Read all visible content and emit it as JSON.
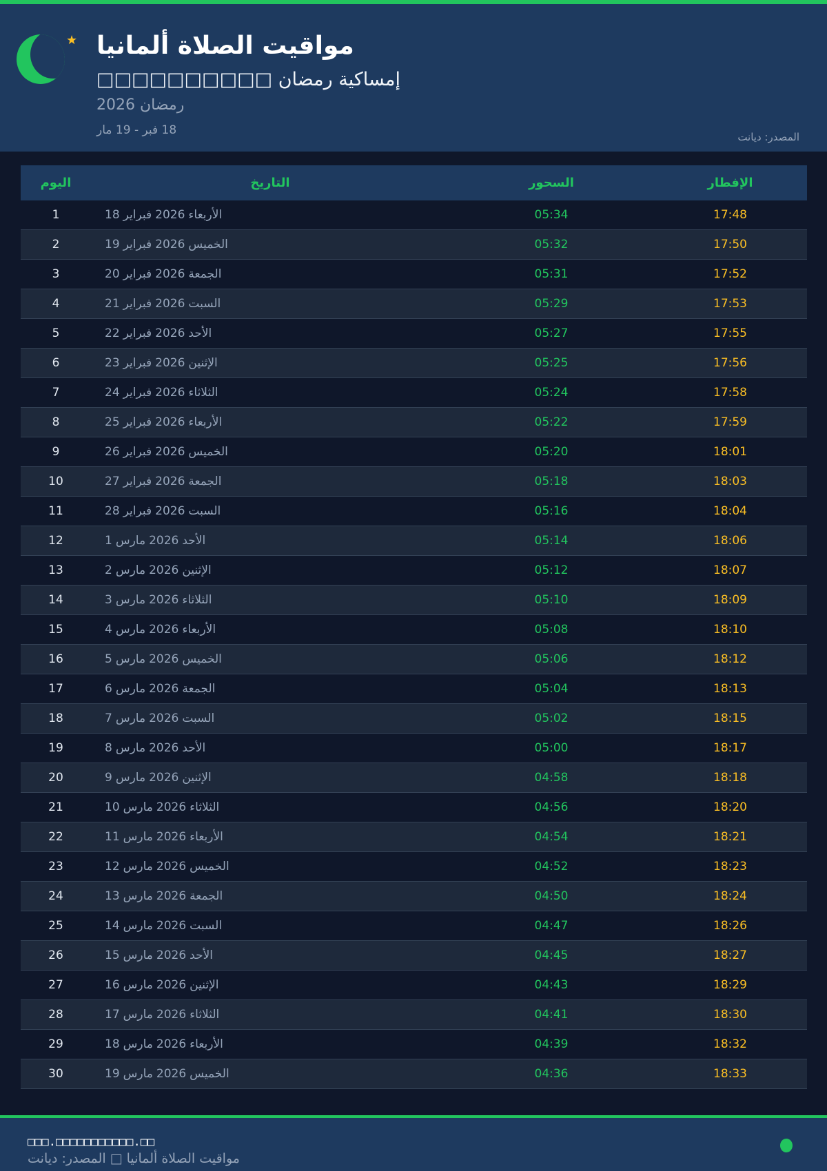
{
  "header": {
    "title": "مواقيت الصلاة ألمانيا",
    "subtitle": "□□□□□□□□□□ إمساكية رمضان",
    "season": "رمضان 2026",
    "range": "18 فبر - 19 مار",
    "source": "المصدر: ديانت"
  },
  "colors": {
    "accent": "#22c55e",
    "iftar": "#fbbf24",
    "header_bg": "#1e3a5f",
    "page_bg": "#0f172a"
  },
  "table": {
    "columns": {
      "day": "اليوم",
      "date": "التاريخ",
      "sahur": "السحور",
      "iftar": "الإفطار"
    },
    "rows": [
      {
        "day": "1",
        "d": "18",
        "m": "فبراير",
        "y": "2026",
        "wd": "الأربعاء",
        "sahur": "05:34",
        "iftar": "17:48"
      },
      {
        "day": "2",
        "d": "19",
        "m": "فبراير",
        "y": "2026",
        "wd": "الخميس",
        "sahur": "05:32",
        "iftar": "17:50"
      },
      {
        "day": "3",
        "d": "20",
        "m": "فبراير",
        "y": "2026",
        "wd": "الجمعة",
        "sahur": "05:31",
        "iftar": "17:52"
      },
      {
        "day": "4",
        "d": "21",
        "m": "فبراير",
        "y": "2026",
        "wd": "السبت",
        "sahur": "05:29",
        "iftar": "17:53"
      },
      {
        "day": "5",
        "d": "22",
        "m": "فبراير",
        "y": "2026",
        "wd": "الأحد",
        "sahur": "05:27",
        "iftar": "17:55"
      },
      {
        "day": "6",
        "d": "23",
        "m": "فبراير",
        "y": "2026",
        "wd": "الإثنين",
        "sahur": "05:25",
        "iftar": "17:56"
      },
      {
        "day": "7",
        "d": "24",
        "m": "فبراير",
        "y": "2026",
        "wd": "الثلاثاء",
        "sahur": "05:24",
        "iftar": "17:58"
      },
      {
        "day": "8",
        "d": "25",
        "m": "فبراير",
        "y": "2026",
        "wd": "الأربعاء",
        "sahur": "05:22",
        "iftar": "17:59"
      },
      {
        "day": "9",
        "d": "26",
        "m": "فبراير",
        "y": "2026",
        "wd": "الخميس",
        "sahur": "05:20",
        "iftar": "18:01"
      },
      {
        "day": "10",
        "d": "27",
        "m": "فبراير",
        "y": "2026",
        "wd": "الجمعة",
        "sahur": "05:18",
        "iftar": "18:03"
      },
      {
        "day": "11",
        "d": "28",
        "m": "فبراير",
        "y": "2026",
        "wd": "السبت",
        "sahur": "05:16",
        "iftar": "18:04"
      },
      {
        "day": "12",
        "d": "1",
        "m": "مارس",
        "y": "2026",
        "wd": "الأحد",
        "sahur": "05:14",
        "iftar": "18:06"
      },
      {
        "day": "13",
        "d": "2",
        "m": "مارس",
        "y": "2026",
        "wd": "الإثنين",
        "sahur": "05:12",
        "iftar": "18:07"
      },
      {
        "day": "14",
        "d": "3",
        "m": "مارس",
        "y": "2026",
        "wd": "الثلاثاء",
        "sahur": "05:10",
        "iftar": "18:09"
      },
      {
        "day": "15",
        "d": "4",
        "m": "مارس",
        "y": "2026",
        "wd": "الأربعاء",
        "sahur": "05:08",
        "iftar": "18:10"
      },
      {
        "day": "16",
        "d": "5",
        "m": "مارس",
        "y": "2026",
        "wd": "الخميس",
        "sahur": "05:06",
        "iftar": "18:12"
      },
      {
        "day": "17",
        "d": "6",
        "m": "مارس",
        "y": "2026",
        "wd": "الجمعة",
        "sahur": "05:04",
        "iftar": "18:13"
      },
      {
        "day": "18",
        "d": "7",
        "m": "مارس",
        "y": "2026",
        "wd": "السبت",
        "sahur": "05:02",
        "iftar": "18:15"
      },
      {
        "day": "19",
        "d": "8",
        "m": "مارس",
        "y": "2026",
        "wd": "الأحد",
        "sahur": "05:00",
        "iftar": "18:17"
      },
      {
        "day": "20",
        "d": "9",
        "m": "مارس",
        "y": "2026",
        "wd": "الإثنين",
        "sahur": "04:58",
        "iftar": "18:18"
      },
      {
        "day": "21",
        "d": "10",
        "m": "مارس",
        "y": "2026",
        "wd": "الثلاثاء",
        "sahur": "04:56",
        "iftar": "18:20"
      },
      {
        "day": "22",
        "d": "11",
        "m": "مارس",
        "y": "2026",
        "wd": "الأربعاء",
        "sahur": "04:54",
        "iftar": "18:21"
      },
      {
        "day": "23",
        "d": "12",
        "m": "مارس",
        "y": "2026",
        "wd": "الخميس",
        "sahur": "04:52",
        "iftar": "18:23"
      },
      {
        "day": "24",
        "d": "13",
        "m": "مارس",
        "y": "2026",
        "wd": "الجمعة",
        "sahur": "04:50",
        "iftar": "18:24"
      },
      {
        "day": "25",
        "d": "14",
        "m": "مارس",
        "y": "2026",
        "wd": "السبت",
        "sahur": "04:47",
        "iftar": "18:26"
      },
      {
        "day": "26",
        "d": "15",
        "m": "مارس",
        "y": "2026",
        "wd": "الأحد",
        "sahur": "04:45",
        "iftar": "18:27"
      },
      {
        "day": "27",
        "d": "16",
        "m": "مارس",
        "y": "2026",
        "wd": "الإثنين",
        "sahur": "04:43",
        "iftar": "18:29"
      },
      {
        "day": "28",
        "d": "17",
        "m": "مارس",
        "y": "2026",
        "wd": "الثلاثاء",
        "sahur": "04:41",
        "iftar": "18:30"
      },
      {
        "day": "29",
        "d": "18",
        "m": "مارس",
        "y": "2026",
        "wd": "الأربعاء",
        "sahur": "04:39",
        "iftar": "18:32"
      },
      {
        "day": "30",
        "d": "19",
        "m": "مارس",
        "y": "2026",
        "wd": "الخميس",
        "sahur": "04:36",
        "iftar": "18:33"
      }
    ]
  },
  "footer": {
    "url": "□□□.□□□□□□□□□□□.□□",
    "text": "مواقيت الصلاة ألمانيا □ المصدر: ديانت"
  }
}
